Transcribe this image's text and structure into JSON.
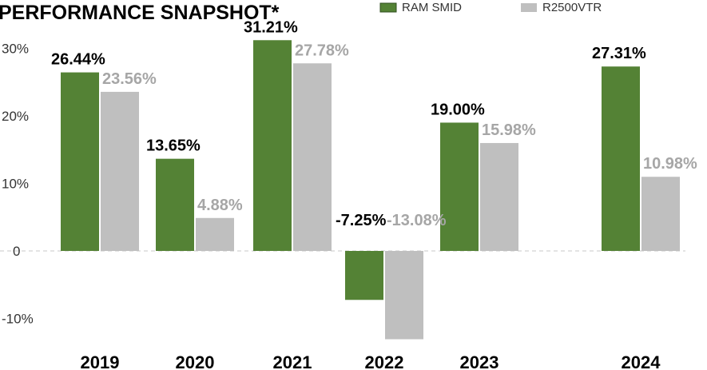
{
  "chart_data": {
    "type": "bar",
    "title": "PERFORMANCE SNAPSHOT*",
    "categories": [
      "2019",
      "2020",
      "2021",
      "2022",
      "2023",
      "2024"
    ],
    "series": [
      {
        "name": "RAM SMID",
        "color": "#548235",
        "values": [
          26.44,
          13.65,
          31.21,
          -7.25,
          19.0,
          27.31
        ],
        "labels": [
          "26.44%",
          "13.65%",
          "31.21%",
          "-7.25%",
          "19.00%",
          "27.31%"
        ],
        "label_color": "#000000"
      },
      {
        "name": "R2500VTR",
        "color": "#bfbfbf",
        "values": [
          23.56,
          4.88,
          27.78,
          -13.08,
          15.98,
          10.98
        ],
        "labels": [
          "23.56%",
          "4.88%",
          "27.78%",
          "-13.08%",
          "15.98%",
          "10.98%"
        ],
        "label_color": "#a6a6a6"
      }
    ],
    "yticks": [
      30,
      20,
      10,
      0,
      -10
    ],
    "ytick_labels": [
      "30%",
      "20%",
      "10%",
      "0",
      "-10%"
    ],
    "ylim": [
      -14,
      31
    ],
    "xlabel": "",
    "ylabel": "",
    "legend": "top-right"
  }
}
